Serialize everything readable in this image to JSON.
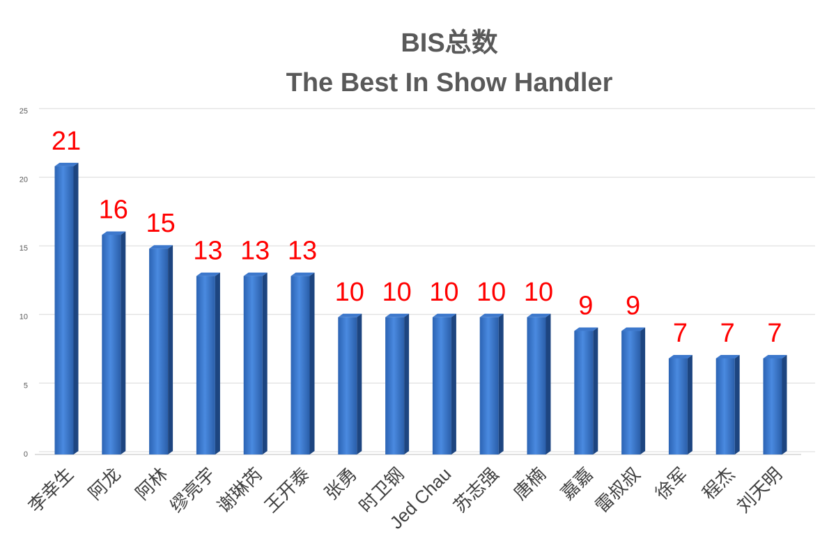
{
  "chart_data": {
    "type": "bar",
    "title": "BIS总数",
    "subtitle": "The Best In Show Handler",
    "categories": [
      "李幸生",
      "阿龙",
      "阿林",
      "缪亮宇",
      "谢琳芮",
      "王开泰",
      "张勇",
      "时卫钢",
      "Jed Chau",
      "苏志强",
      "唐楠",
      "嘉嘉",
      "雷叔叔",
      "徐军",
      "程杰",
      "刘天明"
    ],
    "values": [
      21,
      16,
      15,
      13,
      13,
      13,
      10,
      10,
      10,
      10,
      10,
      9,
      9,
      7,
      7,
      7
    ],
    "color": "#2f6fc4",
    "label_color": "#ff0000",
    "ylim": [
      0,
      25
    ],
    "yticks": [
      0,
      5,
      10,
      15,
      20,
      25
    ],
    "grid": true
  }
}
